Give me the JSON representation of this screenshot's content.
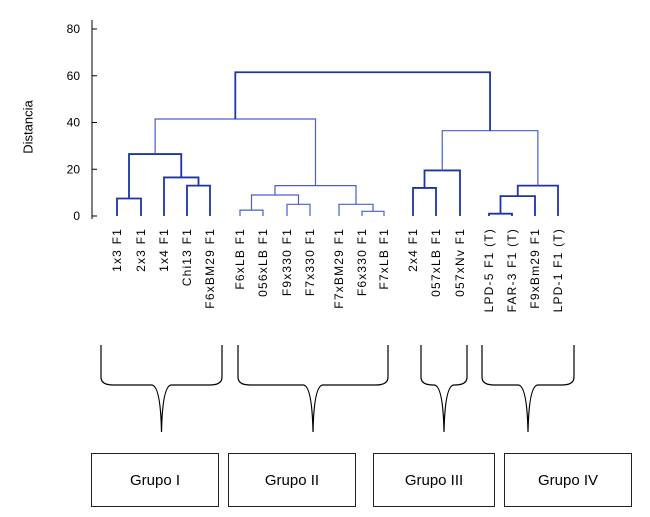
{
  "chart_data": {
    "type": "dendrogram",
    "title": "",
    "ylabel": "Distancia",
    "ylim": [
      0,
      80
    ],
    "yticks": [
      0,
      20,
      40,
      60,
      80
    ],
    "grid": false,
    "leaves": [
      "1x3 F1",
      "2x3 F1",
      "1x4 F1",
      "Chi13 F1",
      "F6xBM29 F1",
      "F6xLB F1",
      "056xLB F1",
      "F9x330 F1",
      "F7x330 F1",
      "F7xBM29 F1",
      "F6x330 F1",
      "F7xLB F1",
      "2x4 F1",
      "057xLB F1",
      "057xNv F1",
      "LPD-5 F1 (T)",
      "FAR-3 F1 (T)",
      "F9xBm29 F1",
      "LPD-1 F1 (T)"
    ],
    "merges": [
      {
        "id": "m1",
        "left": 0,
        "right": 1,
        "height": 7.5,
        "color": "#1c34a8"
      },
      {
        "id": "m2",
        "left": 3,
        "right": 4,
        "height": 13,
        "color": "#1c34a8"
      },
      {
        "id": "m3",
        "left": 2,
        "right": "m2",
        "height": 16.5,
        "color": "#1c34a8"
      },
      {
        "id": "m4",
        "left": "m1",
        "right": "m3",
        "height": 26.5,
        "color": "#1c34a8"
      },
      {
        "id": "m5",
        "left": 5,
        "right": 6,
        "height": 2.5,
        "color": "#4a5ed0"
      },
      {
        "id": "m6",
        "left": 7,
        "right": 8,
        "height": 5,
        "color": "#4a5ed0"
      },
      {
        "id": "m7",
        "left": 10,
        "right": 11,
        "height": 2,
        "color": "#4a5ed0"
      },
      {
        "id": "m8",
        "left": 9,
        "right": "m7",
        "height": 5,
        "color": "#4a5ed0"
      },
      {
        "id": "m9",
        "left": "m5",
        "right": "m6",
        "height": 9,
        "color": "#4a5ed0"
      },
      {
        "id": "m10",
        "left": "m9",
        "right": "m8",
        "height": 13,
        "color": "#4a5ed0"
      },
      {
        "id": "m11",
        "left": "m4",
        "right": "m10",
        "height": 41.5,
        "color": "#4a5ed0"
      },
      {
        "id": "m12",
        "left": 12,
        "right": 13,
        "height": 12,
        "color": "#1c34a8"
      },
      {
        "id": "m13",
        "left": "m12",
        "right": 14,
        "height": 19.5,
        "color": "#1c34a8"
      },
      {
        "id": "m14",
        "left": 15,
        "right": 16,
        "height": 1,
        "color": "#1c34a8"
      },
      {
        "id": "m15",
        "left": "m14",
        "right": 17,
        "height": 8.5,
        "color": "#1c34a8"
      },
      {
        "id": "m16",
        "left": "m15",
        "right": 18,
        "height": 13,
        "color": "#1c34a8"
      },
      {
        "id": "m17",
        "left": "m13",
        "right": "m16",
        "height": 36.5,
        "color": "#4a5ed0"
      },
      {
        "id": "m18",
        "left": "m11",
        "right": "m17",
        "height": 61.5,
        "color": "#1c34a8"
      }
    ],
    "groups": [
      {
        "label": "Grupo I",
        "first_leaf": 0,
        "last_leaf": 4
      },
      {
        "label": "Grupo II",
        "first_leaf": 5,
        "last_leaf": 11
      },
      {
        "label": "Grupo III",
        "first_leaf": 12,
        "last_leaf": 14
      },
      {
        "label": "Grupo IV",
        "first_leaf": 15,
        "last_leaf": 18
      }
    ]
  }
}
